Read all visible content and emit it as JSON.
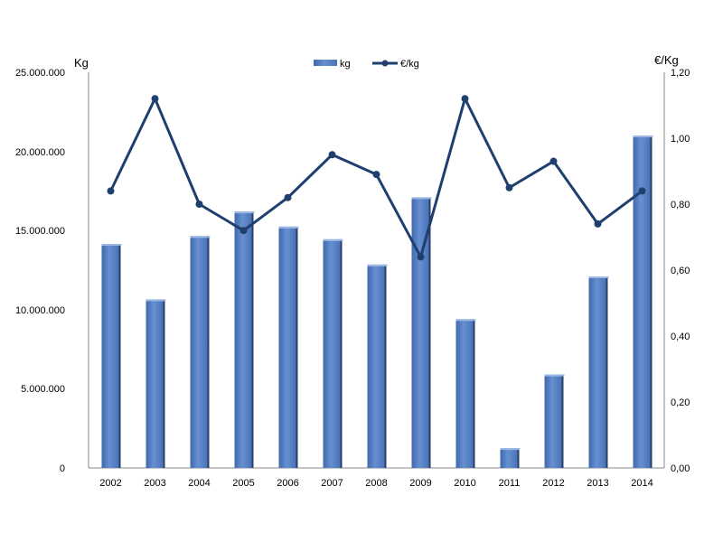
{
  "chart_data": {
    "type": "bar",
    "categories": [
      "2002",
      "2003",
      "2004",
      "2005",
      "2006",
      "2007",
      "2008",
      "2009",
      "2010",
      "2011",
      "2012",
      "2013",
      "2014"
    ],
    "series": [
      {
        "name": "kg",
        "type": "bar",
        "axis": "left",
        "values": [
          14150000,
          10650000,
          14650000,
          16200000,
          15250000,
          14450000,
          12850000,
          17100000,
          9400000,
          1250000,
          5900000,
          12100000,
          21000000
        ]
      },
      {
        "name": "€/kg",
        "type": "line",
        "axis": "right",
        "values": [
          0.84,
          1.12,
          0.8,
          0.72,
          0.82,
          0.95,
          0.89,
          0.64,
          1.12,
          0.85,
          0.93,
          0.74,
          0.84
        ]
      }
    ],
    "y_left": {
      "label": "Kg",
      "lim": [
        0,
        25000000
      ],
      "ticks": [
        "0",
        "5.000.000",
        "10.000.000",
        "15.000.000",
        "20.000.000",
        "25.000.000"
      ]
    },
    "y_right": {
      "label": "€/Kg",
      "lim": [
        0,
        1.2
      ],
      "ticks": [
        "0,00",
        "0,20",
        "0,40",
        "0,60",
        "0,80",
        "1,00",
        "1,20"
      ]
    },
    "grid": false,
    "legend": "top-center",
    "colors": {
      "bar": "#5B86C8",
      "bar_dark": "#3E66A6",
      "line": "#1F3F6E",
      "axis": "#888888"
    }
  }
}
